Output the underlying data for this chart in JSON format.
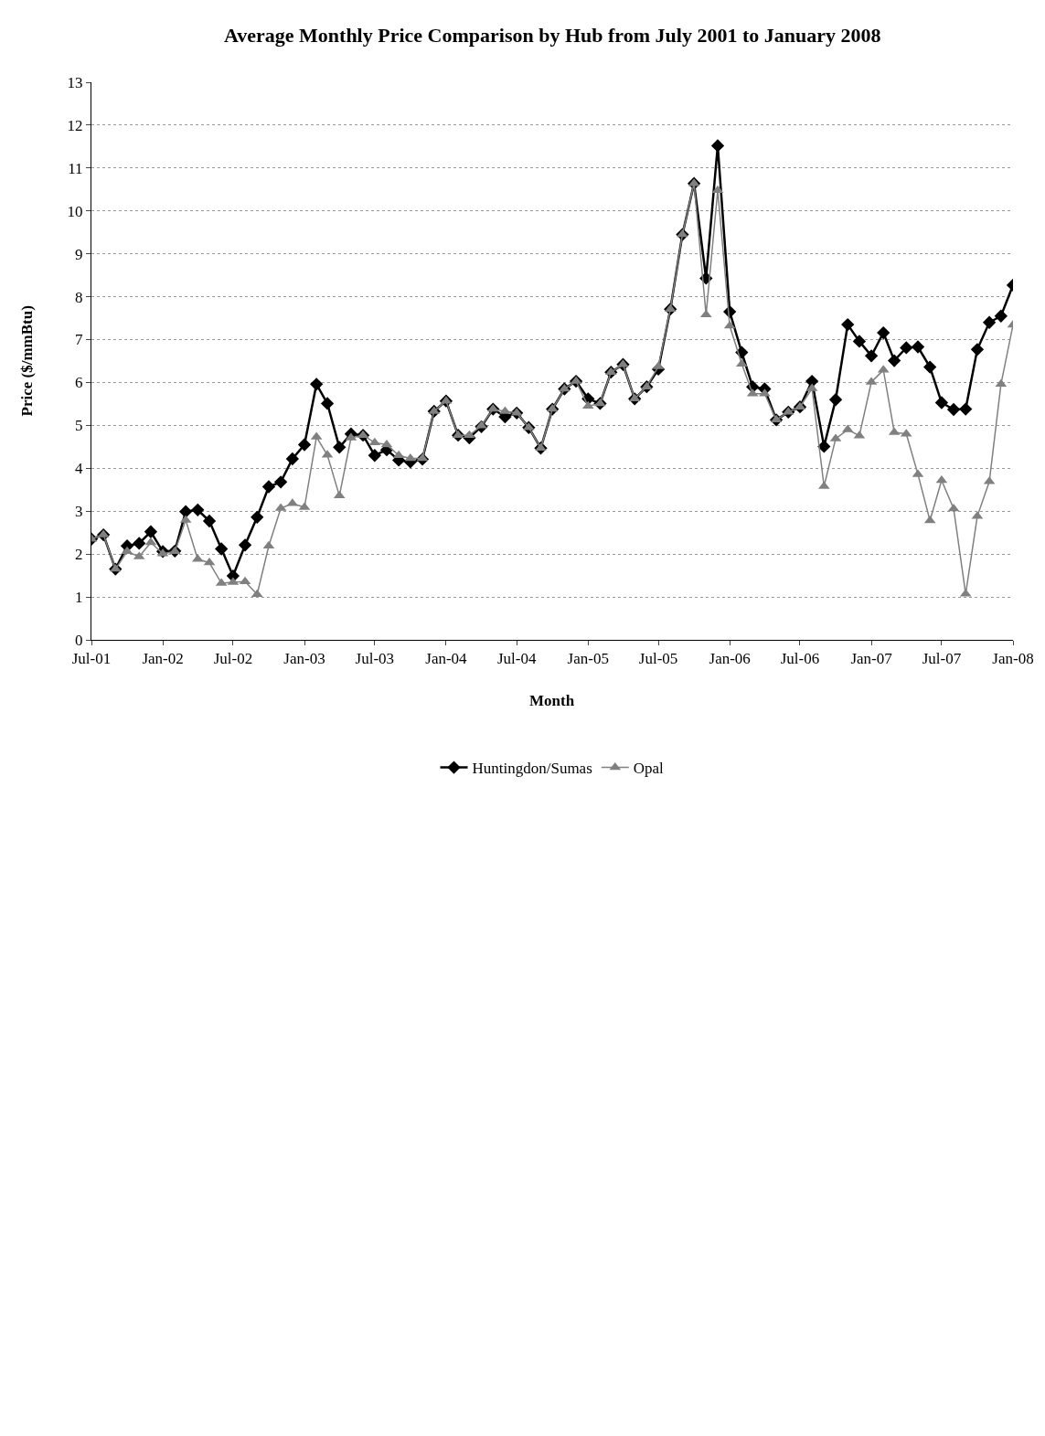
{
  "chart_data": {
    "type": "line",
    "title": "Average Monthly Price Comparison by Hub from July 2001 to January 2008",
    "xlabel": "Month",
    "ylabel": "Price ($/mmBtu)",
    "x": [
      "2001-07",
      "2001-08",
      "2001-09",
      "2001-10",
      "2001-11",
      "2001-12",
      "2002-01",
      "2002-02",
      "2002-03",
      "2002-04",
      "2002-05",
      "2002-06",
      "2002-07",
      "2002-08",
      "2002-09",
      "2002-10",
      "2002-11",
      "2002-12",
      "2003-01",
      "2003-02",
      "2003-03",
      "2003-04",
      "2003-05",
      "2003-06",
      "2003-07",
      "2003-08",
      "2003-09",
      "2003-10",
      "2003-11",
      "2003-12",
      "2004-01",
      "2004-02",
      "2004-03",
      "2004-04",
      "2004-05",
      "2004-06",
      "2004-07",
      "2004-08",
      "2004-09",
      "2004-10",
      "2004-11",
      "2004-12",
      "2005-01",
      "2005-02",
      "2005-03",
      "2005-04",
      "2005-05",
      "2005-06",
      "2005-07",
      "2005-08",
      "2005-09",
      "2005-10",
      "2005-11",
      "2005-12",
      "2006-01",
      "2006-02",
      "2006-03",
      "2006-04",
      "2006-05",
      "2006-06",
      "2006-07",
      "2006-08",
      "2006-09",
      "2006-10",
      "2006-11",
      "2006-12",
      "2007-01",
      "2007-02",
      "2007-03",
      "2007-04",
      "2007-05",
      "2007-06",
      "2007-07",
      "2007-08",
      "2007-09",
      "2007-10",
      "2007-11",
      "2007-12",
      "2008-01"
    ],
    "series": [
      {
        "name": "Huntingdon/Sumas",
        "color": "#000000",
        "marker": "diamond",
        "values": [
          2.35,
          2.45,
          1.65,
          2.19,
          2.25,
          2.52,
          2.06,
          2.07,
          2.99,
          3.03,
          2.77,
          2.12,
          1.49,
          2.21,
          2.86,
          3.57,
          3.68,
          4.22,
          4.55,
          5.96,
          5.51,
          4.49,
          4.8,
          4.77,
          4.3,
          4.43,
          4.19,
          4.15,
          4.21,
          5.33,
          5.57,
          4.77,
          4.71,
          4.97,
          5.38,
          5.2,
          5.29,
          4.95,
          4.47,
          5.38,
          5.85,
          6.03,
          5.62,
          5.51,
          6.24,
          6.42,
          5.62,
          5.9,
          6.31,
          7.71,
          9.45,
          10.64,
          8.43,
          11.52,
          7.65,
          6.7,
          5.9,
          5.85,
          5.13,
          5.31,
          5.43,
          6.03,
          4.51,
          5.6,
          7.35,
          6.96,
          6.62,
          7.16,
          6.51,
          6.81,
          6.83,
          6.36,
          5.53,
          5.37,
          5.38,
          6.77,
          7.4,
          7.55,
          8.27
        ]
      },
      {
        "name": "Opal",
        "color": "#808080",
        "marker": "triangle",
        "values": [
          2.35,
          2.45,
          1.65,
          2.06,
          1.94,
          2.27,
          2.01,
          2.06,
          2.79,
          1.88,
          1.8,
          1.32,
          1.34,
          1.36,
          1.06,
          2.19,
          3.07,
          3.18,
          3.09,
          4.73,
          4.31,
          3.36,
          4.71,
          4.77,
          4.6,
          4.55,
          4.3,
          4.23,
          4.23,
          5.33,
          5.57,
          4.77,
          4.77,
          4.99,
          5.38,
          5.33,
          5.29,
          4.95,
          4.47,
          5.38,
          5.85,
          6.03,
          5.45,
          5.51,
          6.24,
          6.42,
          5.62,
          5.9,
          6.37,
          7.71,
          9.45,
          10.64,
          7.58,
          10.48,
          7.32,
          6.43,
          5.74,
          5.74,
          5.13,
          5.31,
          5.43,
          5.86,
          3.58,
          4.69,
          4.9,
          4.76,
          6.01,
          6.29,
          4.84,
          4.8,
          3.86,
          2.78,
          3.72,
          3.06,
          1.07,
          2.88,
          3.69,
          5.96,
          7.34
        ]
      }
    ],
    "xlim": [
      "2001-07",
      "2008-01"
    ],
    "xticks": [
      {
        "value": "2001-07",
        "label": "Jul-01"
      },
      {
        "value": "2002-01",
        "label": "Jan-02"
      },
      {
        "value": "2002-07",
        "label": "Jul-02"
      },
      {
        "value": "2003-01",
        "label": "Jan-03"
      },
      {
        "value": "2003-07",
        "label": "Jul-03"
      },
      {
        "value": "2004-01",
        "label": "Jan-04"
      },
      {
        "value": "2004-07",
        "label": "Jul-04"
      },
      {
        "value": "2005-01",
        "label": "Jan-05"
      },
      {
        "value": "2005-07",
        "label": "Jul-05"
      },
      {
        "value": "2006-01",
        "label": "Jan-06"
      },
      {
        "value": "2006-07",
        "label": "Jul-06"
      },
      {
        "value": "2007-01",
        "label": "Jan-07"
      },
      {
        "value": "2007-07",
        "label": "Jul-07"
      },
      {
        "value": "2008-01",
        "label": "Jan-08"
      }
    ],
    "ylim": [
      0,
      13
    ],
    "yticks": [
      0,
      1,
      2,
      3,
      4,
      5,
      6,
      7,
      8,
      9,
      10,
      11,
      12,
      13
    ],
    "grid": "y",
    "legend": "bottom",
    "line_style": "solid"
  }
}
